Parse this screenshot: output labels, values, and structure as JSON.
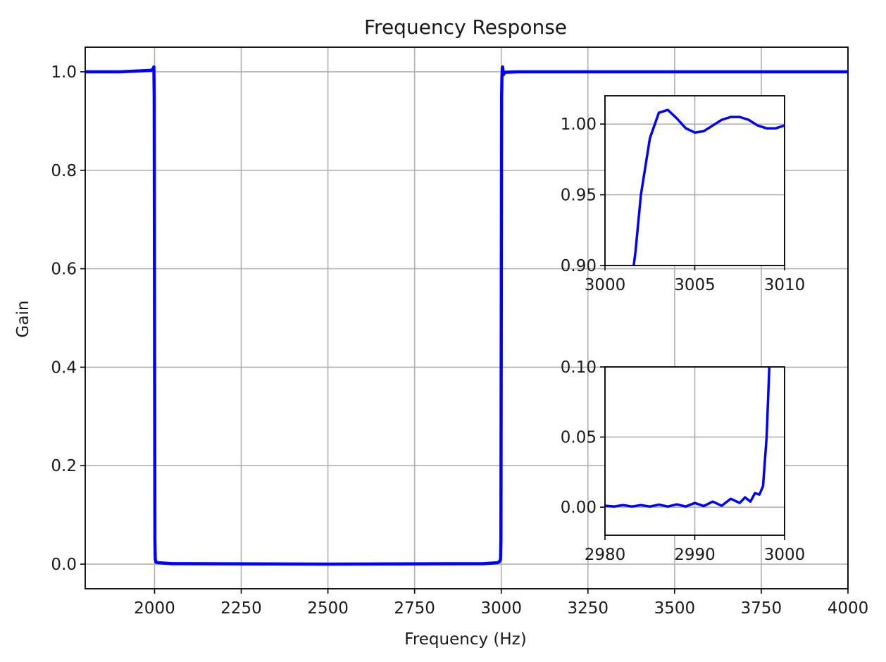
{
  "chart_data": [
    {
      "id": "main",
      "type": "line",
      "title": "Frequency Response",
      "xlabel": "Frequency (Hz)",
      "ylabel": "Gain",
      "xlim": [
        1800,
        4000
      ],
      "ylim": [
        -0.05,
        1.05
      ],
      "xticks": [
        2000,
        2250,
        2500,
        2750,
        3000,
        3250,
        3500,
        3750,
        4000
      ],
      "xtick_labels": [
        "2000",
        "2250",
        "2500",
        "2750",
        "3000",
        "3250",
        "3500",
        "3750",
        "4000"
      ],
      "yticks": [
        0.0,
        0.2,
        0.4,
        0.6,
        0.8,
        1.0
      ],
      "ytick_labels": [
        "0.0",
        "0.2",
        "0.4",
        "0.6",
        "0.8",
        "1.0"
      ],
      "grid": true,
      "color": "#0000ff",
      "series": [
        {
          "x": [
            1800,
            1900,
            1990,
            1996,
            1998,
            1999,
            2000,
            2001,
            2002,
            2004,
            2010,
            2050,
            2500,
            2950,
            2990,
            2996,
            2998,
            2999,
            3000,
            3001,
            3002,
            3003,
            3004,
            3006,
            3010,
            3050,
            4000
          ],
          "y": [
            1.0,
            1.0,
            1.003,
            1.006,
            1.01,
            0.95,
            0.5,
            0.05,
            0.01,
            0.004,
            0.003,
            0.001,
            0.0,
            0.001,
            0.003,
            0.006,
            0.01,
            0.05,
            0.5,
            0.95,
            0.99,
            1.008,
            1.01,
            0.994,
            0.999,
            1.0,
            1.0
          ]
        }
      ]
    },
    {
      "id": "inset-top",
      "type": "line",
      "title": "",
      "xlabel": "",
      "ylabel": "",
      "xlim": [
        3000,
        3010
      ],
      "ylim": [
        0.9,
        1.02
      ],
      "xticks": [
        3000,
        3005,
        3010
      ],
      "xtick_labels": [
        "3000",
        "3005",
        "3010"
      ],
      "yticks": [
        0.9,
        0.95,
        1.0
      ],
      "ytick_labels": [
        "0.90",
        "0.95",
        "1.00"
      ],
      "grid": true,
      "color": "#0000ff",
      "series": [
        {
          "x": [
            3001.4,
            3001.7,
            3002.0,
            3002.5,
            3003.0,
            3003.5,
            3004.0,
            3004.5,
            3005.0,
            3005.5,
            3006.0,
            3006.5,
            3007.0,
            3007.5,
            3008.0,
            3008.5,
            3009.0,
            3009.5,
            3010.0
          ],
          "y": [
            0.88,
            0.91,
            0.95,
            0.99,
            1.008,
            1.01,
            1.004,
            0.997,
            0.994,
            0.995,
            0.999,
            1.003,
            1.005,
            1.005,
            1.003,
            0.999,
            0.997,
            0.997,
            0.999
          ]
        }
      ]
    },
    {
      "id": "inset-bottom",
      "type": "line",
      "title": "",
      "xlabel": "",
      "ylabel": "",
      "xlim": [
        2980,
        3000
      ],
      "ylim": [
        -0.02,
        0.1
      ],
      "xticks": [
        2980,
        2990,
        3000
      ],
      "xtick_labels": [
        "2980",
        "2990",
        "3000"
      ],
      "yticks": [
        0.0,
        0.05,
        0.1
      ],
      "ytick_labels": [
        "0.00",
        "0.05",
        "0.10"
      ],
      "grid": true,
      "color": "#0000ff",
      "series": [
        {
          "x": [
            2980,
            2981,
            2982,
            2983,
            2984,
            2985,
            2986,
            2987,
            2988,
            2989,
            2990,
            2991,
            2992,
            2993,
            2994,
            2995,
            2995.6,
            2996.2,
            2996.7,
            2997.2,
            2997.6,
            2998.0,
            2998.3
          ],
          "y": [
            0.001,
            0.0005,
            0.0015,
            0.0005,
            0.0015,
            0.0005,
            0.0018,
            0.0005,
            0.002,
            0.0005,
            0.003,
            0.0008,
            0.004,
            0.001,
            0.006,
            0.003,
            0.007,
            0.004,
            0.01,
            0.009,
            0.015,
            0.05,
            0.1
          ]
        }
      ]
    }
  ]
}
